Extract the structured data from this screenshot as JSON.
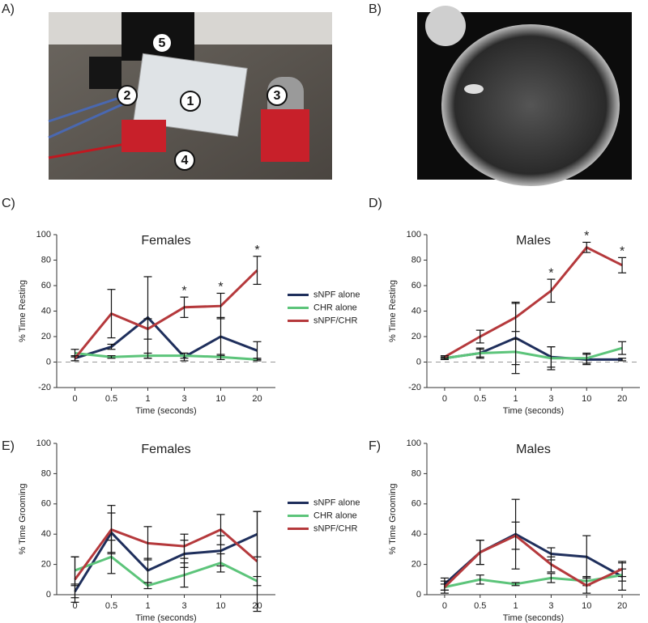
{
  "panel_labels": [
    "A)",
    "B)",
    "C)",
    "D)",
    "E)",
    "F)"
  ],
  "photo_labels": [
    "5",
    "2",
    "1",
    "3",
    "4"
  ],
  "chart_data": [
    {
      "type": "line",
      "title": "Females",
      "x_label": "Time (seconds)",
      "y_label": "% Time Resting",
      "categories": [
        "0",
        "0.5",
        "1",
        "3",
        "10",
        "20"
      ],
      "ylim": [
        -20,
        100
      ],
      "yticks": [
        -20,
        0,
        20,
        40,
        60,
        80,
        100
      ],
      "zero_line": true,
      "legend": true,
      "significance": [
        null,
        null,
        null,
        "*",
        "*",
        "*"
      ],
      "series": [
        {
          "name": "sNPF alone",
          "color": "#1f2f5c",
          "values": [
            3,
            12,
            35,
            4,
            20,
            9
          ],
          "errors": [
            2,
            2,
            32,
            3,
            15,
            7
          ]
        },
        {
          "name": "CHR alone",
          "color": "#5cc47a",
          "values": [
            7,
            4,
            5,
            5,
            4,
            2
          ],
          "errors": [
            3,
            1,
            2,
            2,
            2,
            1
          ]
        },
        {
          "name": "sNPF/CHR",
          "color": "#b5393c",
          "values": [
            3,
            38,
            26,
            43,
            44,
            72
          ],
          "errors": [
            2,
            19,
            8,
            8,
            10,
            11
          ]
        }
      ]
    },
    {
      "type": "line",
      "title": "Males",
      "x_label": "Time (seconds)",
      "y_label": "% Time Resting",
      "categories": [
        "0",
        "0.5",
        "1",
        "3",
        "10",
        "20"
      ],
      "ylim": [
        -20,
        100
      ],
      "yticks": [
        -20,
        0,
        20,
        40,
        60,
        80,
        100
      ],
      "zero_line": true,
      "legend": false,
      "significance": [
        null,
        null,
        null,
        "*",
        "*",
        "*"
      ],
      "series": [
        {
          "name": "sNPF alone",
          "color": "#1f2f5c",
          "values": [
            3,
            7,
            19,
            4,
            2,
            2
          ],
          "errors": [
            1,
            4,
            28,
            8,
            4,
            1
          ]
        },
        {
          "name": "CHR alone",
          "color": "#5cc47a",
          "values": [
            3,
            7,
            8,
            3,
            3,
            11
          ],
          "errors": [
            1,
            3,
            10,
            9,
            4,
            5
          ]
        },
        {
          "name": "sNPF/CHR",
          "color": "#b5393c",
          "values": [
            4,
            20,
            35,
            56,
            90,
            76
          ],
          "errors": [
            1,
            5,
            11,
            9,
            4,
            6
          ]
        }
      ]
    },
    {
      "type": "line",
      "title": "Females",
      "x_label": "Time (seconds)",
      "y_label": "% Time Grooming",
      "categories": [
        "0",
        "0.5",
        "1",
        "3",
        "10",
        "20"
      ],
      "ylim": [
        0,
        100
      ],
      "yticks": [
        0,
        20,
        40,
        60,
        80,
        100
      ],
      "zero_line": false,
      "legend": true,
      "series": [
        {
          "name": "sNPF alone",
          "color": "#1f2f5c",
          "values": [
            2,
            41,
            16,
            27,
            29,
            40
          ],
          "errors": [
            4,
            13,
            8,
            9,
            10,
            15
          ]
        },
        {
          "name": "CHR alone",
          "color": "#5cc47a",
          "values": [
            16,
            25,
            6,
            13,
            21,
            9
          ],
          "errors": [
            9,
            11,
            2,
            8,
            6,
            3
          ]
        },
        {
          "name": "sNPF/CHR",
          "color": "#b5393c",
          "values": [
            10,
            43,
            34,
            32,
            43,
            22
          ],
          "errors": [
            15,
            16,
            11,
            8,
            10,
            33
          ]
        }
      ]
    },
    {
      "type": "line",
      "title": "Males",
      "x_label": "Time (seconds)",
      "y_label": "% Time Grooming",
      "categories": [
        "0",
        "0.5",
        "1",
        "3",
        "10",
        "20"
      ],
      "ylim": [
        0,
        100
      ],
      "yticks": [
        0,
        20,
        40,
        60,
        80,
        100
      ],
      "zero_line": false,
      "legend": false,
      "series": [
        {
          "name": "sNPF alone",
          "color": "#1f2f5c",
          "values": [
            7,
            28,
            40,
            27,
            25,
            12
          ],
          "errors": [
            4,
            8,
            23,
            4,
            14,
            9
          ]
        },
        {
          "name": "CHR alone",
          "color": "#5cc47a",
          "values": [
            5,
            10,
            7,
            11,
            9,
            13
          ],
          "errors": [
            2,
            3,
            1,
            3,
            3,
            4
          ]
        },
        {
          "name": "sNPF/CHR",
          "color": "#b5393c",
          "values": [
            5,
            28,
            39,
            20,
            6,
            17
          ],
          "errors": [
            4,
            8,
            9,
            5,
            5,
            5
          ]
        }
      ]
    }
  ]
}
